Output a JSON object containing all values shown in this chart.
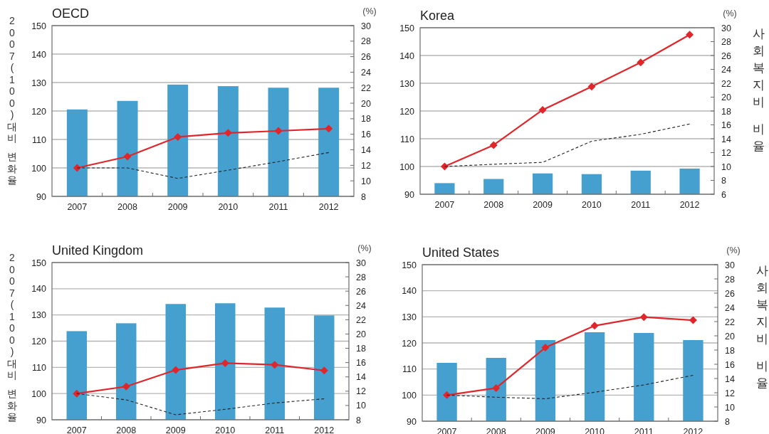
{
  "chart_data": [
    {
      "type": "bar",
      "title": "OECD",
      "ylabel": "2007(100)대비 변화율",
      "annotations": [
        "(%)"
      ],
      "categories": [
        "2007",
        "2008",
        "2009",
        "2010",
        "2011",
        "2012"
      ],
      "ylim": [
        90,
        150
      ],
      "yticks": [
        90,
        100,
        110,
        120,
        130,
        140,
        150
      ],
      "y2lim": [
        8,
        30
      ],
      "y2ticks": [
        8,
        10,
        12,
        14,
        16,
        18,
        20,
        22,
        24,
        26,
        28,
        30
      ],
      "grid": "y",
      "series": [
        {
          "axis": "y2",
          "color": "#45a0d0",
          "values": [
            19.2,
            20.3,
            22.4,
            22.2,
            22.0,
            22.0
          ]
        },
        {
          "type": "line",
          "color": "#e0262b",
          "marker": "diamond",
          "line_style": "solid",
          "values": [
            100,
            104,
            110.9,
            112.3,
            113,
            113.8
          ]
        },
        {
          "type": "line",
          "color": "#222222",
          "marker": "none",
          "line_style": "dashed",
          "values": [
            100,
            100,
            96.3,
            99.2,
            102.2,
            105.4
          ]
        }
      ]
    },
    {
      "type": "bar",
      "title": "Korea",
      "y2label": "사회복지비 비율",
      "annotations": [
        "(%)"
      ],
      "categories": [
        "2007",
        "2008",
        "2009",
        "2010",
        "2011",
        "2012"
      ],
      "ylim": [
        90,
        150
      ],
      "yticks": [
        90,
        100,
        110,
        120,
        130,
        140,
        150
      ],
      "y2lim": [
        6,
        30
      ],
      "y2ticks": [
        6,
        8,
        10,
        12,
        14,
        16,
        18,
        20,
        22,
        24,
        26,
        28,
        30
      ],
      "grid": "y",
      "series": [
        {
          "axis": "y2",
          "color": "#45a0d0",
          "values": [
            7.6,
            8.2,
            9.0,
            8.9,
            9.4,
            9.7
          ]
        },
        {
          "type": "line",
          "color": "#e0262b",
          "marker": "diamond",
          "line_style": "solid",
          "values": [
            100,
            107.7,
            120.4,
            128.8,
            137.5,
            147.5
          ]
        },
        {
          "type": "line",
          "color": "#222222",
          "marker": "none",
          "line_style": "dashed",
          "values": [
            100,
            100.8,
            101.5,
            109.1,
            111.6,
            115.3
          ]
        }
      ]
    },
    {
      "type": "bar",
      "title": "United Kingdom",
      "ylabel": "2007(100)대비 변화율",
      "annotations": [
        "(%)"
      ],
      "categories": [
        "2007",
        "2008",
        "2009",
        "2010",
        "2011",
        "2012"
      ],
      "ylim": [
        90,
        150
      ],
      "yticks": [
        90,
        100,
        110,
        120,
        130,
        140,
        150
      ],
      "y2lim": [
        8,
        30
      ],
      "y2ticks": [
        8,
        10,
        12,
        14,
        16,
        18,
        20,
        22,
        24,
        26,
        28,
        30
      ],
      "grid": "y",
      "series": [
        {
          "axis": "y2",
          "color": "#45a0d0",
          "values": [
            20.4,
            21.5,
            24.2,
            24.3,
            23.7,
            22.6
          ]
        },
        {
          "type": "line",
          "color": "#e0262b",
          "marker": "diamond",
          "line_style": "solid",
          "values": [
            100,
            102.7,
            109,
            111.6,
            111,
            108.8
          ]
        },
        {
          "type": "line",
          "color": "#222222",
          "marker": "none",
          "line_style": "dashed",
          "values": [
            100,
            97.6,
            91.9,
            94,
            96.4,
            98
          ]
        }
      ]
    },
    {
      "type": "bar",
      "title": "United States",
      "y2label": "사회복지비 비율",
      "annotations": [
        "(%)"
      ],
      "categories": [
        "2007",
        "2008",
        "2009",
        "2010",
        "2011",
        "2012"
      ],
      "ylim": [
        90,
        150
      ],
      "yticks": [
        90,
        100,
        110,
        120,
        130,
        140,
        150
      ],
      "y2lim": [
        8,
        30
      ],
      "y2ticks": [
        8,
        10,
        12,
        14,
        16,
        18,
        20,
        22,
        24,
        26,
        28,
        30
      ],
      "grid": "y",
      "series": [
        {
          "axis": "y2",
          "color": "#45a0d0",
          "values": [
            16.2,
            16.9,
            19.4,
            20.5,
            20.4,
            19.4
          ]
        },
        {
          "type": "line",
          "color": "#e0262b",
          "marker": "diamond",
          "line_style": "solid",
          "values": [
            100,
            102.7,
            118.2,
            126.6,
            129.9,
            128.7
          ]
        },
        {
          "type": "line",
          "color": "#222222",
          "marker": "none",
          "line_style": "dashed",
          "values": [
            100,
            99.2,
            98.6,
            101.1,
            103.9,
            107.6
          ]
        }
      ]
    }
  ]
}
